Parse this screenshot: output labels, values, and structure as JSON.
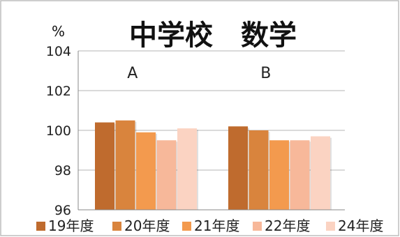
{
  "chart_data": {
    "type": "bar",
    "title": "中学校　数学",
    "unit": "%",
    "categories": [
      "A",
      "B"
    ],
    "series": [
      {
        "name": "19年度",
        "color": "#bf6b2e",
        "values": [
          100.4,
          100.2
        ]
      },
      {
        "name": "20年度",
        "color": "#d9843d",
        "values": [
          100.5,
          100.0
        ]
      },
      {
        "name": "21年度",
        "color": "#f39a4e",
        "values": [
          99.9,
          99.5
        ]
      },
      {
        "name": "22年度",
        "color": "#f7b89a",
        "values": [
          99.5,
          99.5
        ]
      },
      {
        "name": "24年度",
        "color": "#fbd3c2",
        "values": [
          100.1,
          99.7
        ]
      }
    ],
    "ylim": [
      96,
      104
    ],
    "yticks": [
      "96",
      "98",
      "100",
      "102",
      "104"
    ],
    "grid": true,
    "legend_position": "bottom"
  }
}
